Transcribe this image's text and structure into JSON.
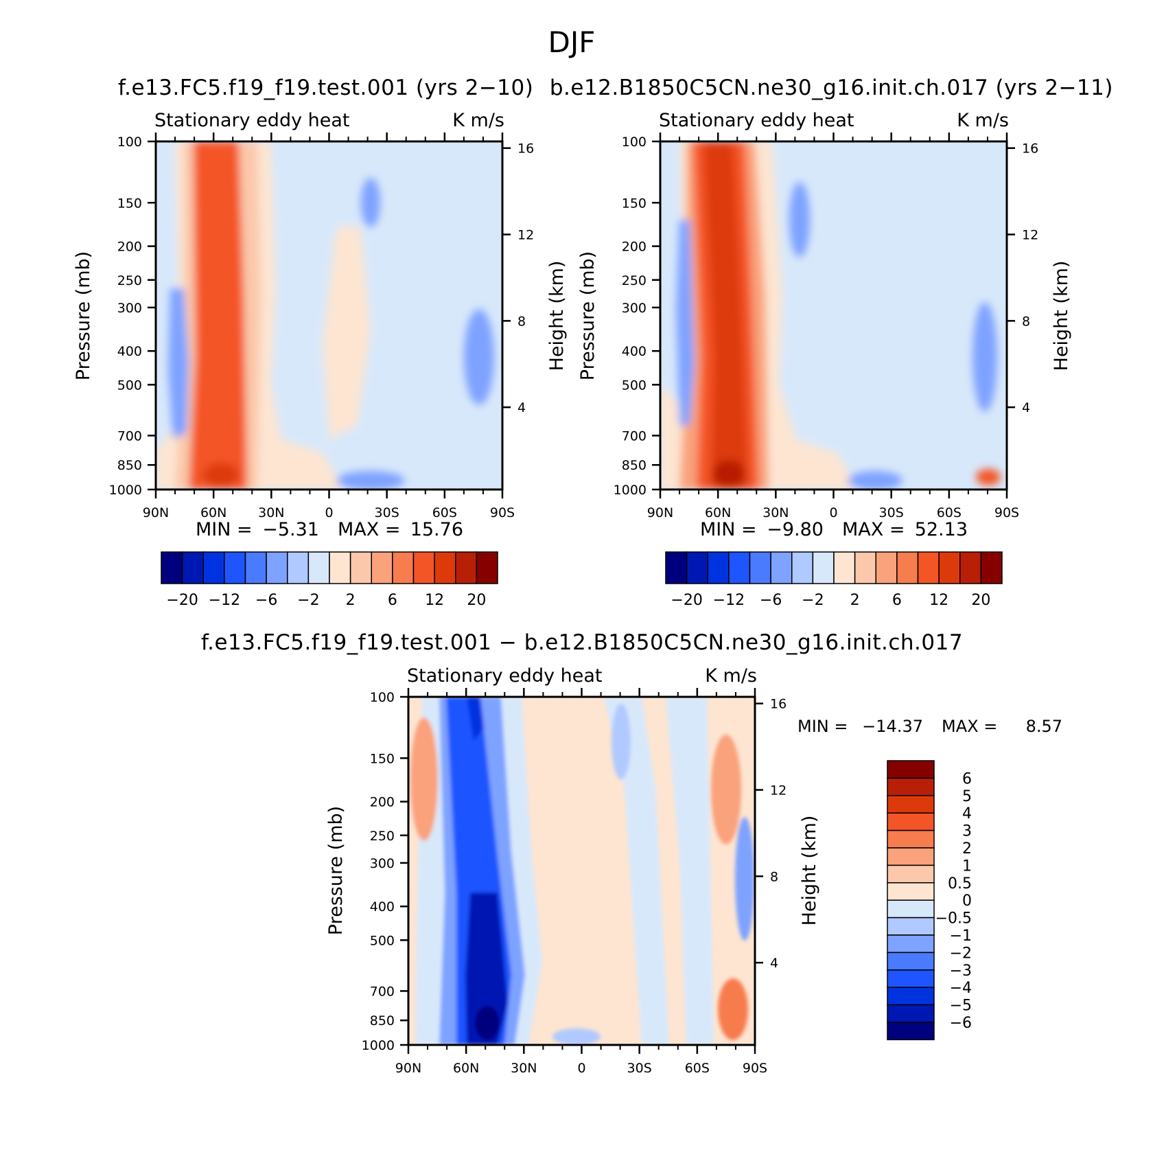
{
  "figure": {
    "title": "DJF",
    "case_a": "f.e13.FC5.f19_f19.test.001 (yrs 2−10)",
    "case_b": "b.e12.B1850C5CN.ne30_g16.init.ch.017 (yrs 2−11)",
    "diff_title": "f.e13.FC5.f19_f19.test.001 − b.e12.B1850C5CN.ne30_g16.init.ch.017"
  },
  "chart_data": [
    {
      "id": "panel-a",
      "type": "heatmap",
      "title_left": "Stationary eddy heat",
      "title_right": "K m/s",
      "xlabel": "",
      "ylabel": "Pressure (mb)",
      "ylabel_right": "Height (km)",
      "x_ticks": [
        "90N",
        "60N",
        "30N",
        "0",
        "30S",
        "60S",
        "90S"
      ],
      "x_values": [
        90,
        60,
        30,
        0,
        -30,
        -60,
        -90
      ],
      "y_ticks": [
        100,
        150,
        200,
        250,
        300,
        400,
        500,
        700,
        850,
        1000
      ],
      "y_right_ticks": [
        16,
        12,
        8,
        4
      ],
      "ylim": [
        1000,
        100
      ],
      "stats": {
        "min_label": "MIN =",
        "min": "−5.31",
        "max_label": "MAX =",
        "max": "15.76"
      },
      "colorbar_labels": [
        "−20",
        "−12",
        "−6",
        "−2",
        "2",
        "6",
        "12",
        "20"
      ],
      "features": [
        {
          "lat": 50,
          "p_top": 100,
          "p_bottom": 1000,
          "value": 12,
          "note": "strong positive band near 50N"
        },
        {
          "lat": 78,
          "p_top": 300,
          "p_bottom": 700,
          "value": -3,
          "note": "negative region near 75N"
        },
        {
          "lat": 48,
          "p_top": 800,
          "p_bottom": 1000,
          "value": 16,
          "note": "maximum near surface"
        }
      ]
    },
    {
      "id": "panel-b",
      "type": "heatmap",
      "title_left": "Stationary eddy heat",
      "title_right": "K m/s",
      "xlabel": "",
      "ylabel": "Pressure (mb)",
      "ylabel_right": "Height (km)",
      "x_ticks": [
        "90N",
        "60N",
        "30N",
        "0",
        "30S",
        "60S",
        "90S"
      ],
      "x_values": [
        90,
        60,
        30,
        0,
        -30,
        -60,
        -90
      ],
      "y_ticks": [
        100,
        150,
        200,
        250,
        300,
        400,
        500,
        700,
        850,
        1000
      ],
      "y_right_ticks": [
        16,
        12,
        8,
        4
      ],
      "ylim": [
        1000,
        100
      ],
      "stats": {
        "min_label": "MIN =",
        "min": "−9.80",
        "max_label": "MAX =",
        "max": "52.13"
      },
      "colorbar_labels": [
        "−20",
        "−12",
        "−6",
        "−2",
        "2",
        "6",
        "12",
        "20"
      ],
      "features": [
        {
          "lat": 52,
          "p_top": 100,
          "p_bottom": 1000,
          "value": 15,
          "note": "strong positive band near 50N"
        },
        {
          "lat": 48,
          "p_top": 800,
          "p_bottom": 1000,
          "value": 20,
          "note": "maximum near surface"
        }
      ]
    },
    {
      "id": "panel-c",
      "type": "heatmap",
      "title_left": "Stationary eddy heat",
      "title_right": "K m/s",
      "xlabel": "",
      "ylabel": "Pressure (mb)",
      "ylabel_right": "Height (km)",
      "x_ticks": [
        "90N",
        "60N",
        "30N",
        "0",
        "30S",
        "60S",
        "90S"
      ],
      "x_values": [
        90,
        60,
        30,
        0,
        -30,
        -60,
        -90
      ],
      "y_ticks": [
        100,
        150,
        200,
        250,
        300,
        400,
        500,
        700,
        850,
        1000
      ],
      "y_right_ticks": [
        16,
        12,
        8,
        4
      ],
      "ylim": [
        1000,
        100
      ],
      "stats": {
        "min_label": "MIN =",
        "min": "−14.37",
        "max_label": "MAX =",
        "max": "8.57"
      },
      "colorbar_labels": [
        "6",
        "5",
        "4",
        "3",
        "2",
        "1",
        "0.5",
        "0",
        "−0.5",
        "−1",
        "−2",
        "−3",
        "−4",
        "−5",
        "−6"
      ],
      "features": [
        {
          "lat": 48,
          "p_top": 100,
          "p_bottom": 1000,
          "value": -4,
          "note": "negative band tilting from 60N (top) to 40N (surface)"
        },
        {
          "lat": 80,
          "p_top": 150,
          "p_bottom": 300,
          "value": 2,
          "note": "positive region near 80N aloft"
        }
      ]
    }
  ],
  "colors": {
    "diverging": [
      "#00007f",
      "#0018b3",
      "#0033e0",
      "#1f55ff",
      "#4a7bff",
      "#7ea2ff",
      "#b0c9ff",
      "#d8e8fb",
      "#fde5d2",
      "#fbc8ab",
      "#f9a27c",
      "#f77c4e",
      "#f45527",
      "#dd3a0b",
      "#b81f06",
      "#870000"
    ]
  }
}
